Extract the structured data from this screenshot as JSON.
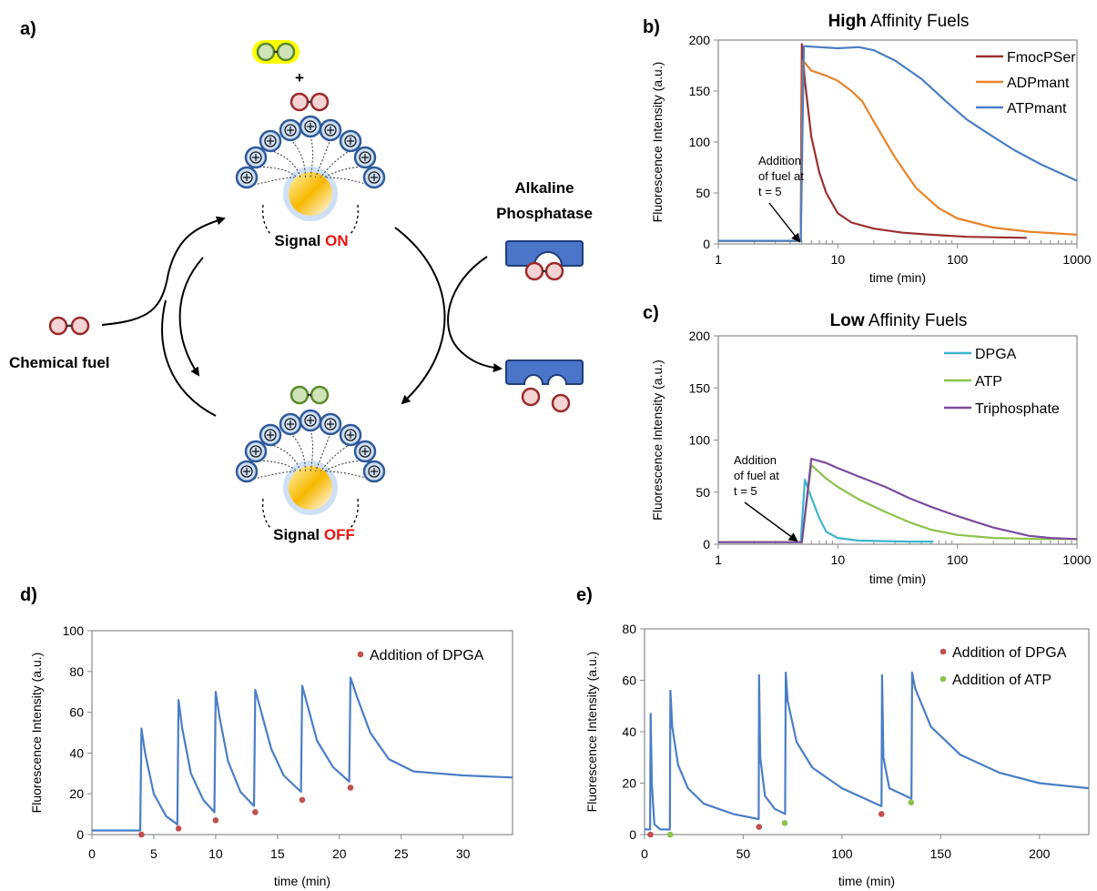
{
  "panels": {
    "a": "a)",
    "b": "b)",
    "c": "c)",
    "d": "d)",
    "e": "e)"
  },
  "scheme": {
    "signal_on_word": "Signal",
    "signal_on_state": "ON",
    "signal_off_word": "Signal",
    "signal_off_state": "OFF",
    "plus": "+",
    "chemical_fuel": "Chemical fuel",
    "enzyme_line1": "Alkaline",
    "enzyme_line2": "Phosphatase",
    "colors": {
      "on_off_red": "#e8140f",
      "head": "#2f5a9a",
      "enzyme": "#4a75c9",
      "fuel_red": "#9b2a2a",
      "fuel_green": "#5a8a2a",
      "highlight": "#ffff00"
    }
  },
  "chart_data": [
    {
      "id": "b",
      "type": "line",
      "title_bold": "High",
      "title_rest": "Affinity Fuels",
      "xlabel": "time (min)",
      "ylabel": "Fluorescence Intensity (a.u.)",
      "xscale": "log",
      "xlim": [
        1,
        1000
      ],
      "ylim": [
        0,
        200
      ],
      "xticks": [
        1,
        10,
        100,
        1000
      ],
      "yticks": [
        0,
        50,
        100,
        150,
        200
      ],
      "legend": "top-right",
      "annotation": [
        "Addition",
        "of fuel at",
        "t = 5"
      ],
      "series": [
        {
          "name": "FmocPSer",
          "color": "#9b2f2f",
          "x": [
            1,
            4.9,
            5,
            5.3,
            6,
            7,
            8,
            10,
            13,
            20,
            35,
            60,
            120,
            200,
            380
          ],
          "y": [
            3,
            3,
            196,
            160,
            105,
            70,
            50,
            30,
            21,
            15,
            11,
            9,
            7,
            6.5,
            6
          ]
        },
        {
          "name": "ADPmant",
          "color": "#e8832a",
          "x": [
            1,
            4.9,
            5.1,
            6,
            8,
            10,
            13,
            16,
            20,
            30,
            45,
            70,
            100,
            200,
            400,
            1000
          ],
          "y": [
            3,
            3,
            180,
            170,
            165,
            160,
            150,
            140,
            120,
            85,
            55,
            35,
            25,
            16,
            12,
            9
          ]
        },
        {
          "name": "ATPmant",
          "color": "#4a7ec5",
          "x": [
            1,
            4.9,
            5.2,
            7,
            10,
            15,
            20,
            30,
            50,
            80,
            120,
            200,
            300,
            500,
            1000
          ],
          "y": [
            3,
            3,
            194,
            193,
            192,
            193,
            190,
            180,
            162,
            140,
            122,
            105,
            92,
            78,
            62
          ]
        }
      ]
    },
    {
      "id": "c",
      "type": "line",
      "title_bold": "Low",
      "title_rest": "Affinity Fuels",
      "xlabel": "time (min)",
      "ylabel": "Fluorescence Intensity (a.u.)",
      "xscale": "log",
      "xlim": [
        1,
        1000
      ],
      "ylim": [
        0,
        200
      ],
      "xticks": [
        1,
        10,
        100,
        1000
      ],
      "yticks": [
        0,
        50,
        100,
        150,
        200
      ],
      "legend": "top-right",
      "annotation": [
        "Addition",
        "of fuel at",
        "t = 5"
      ],
      "series": [
        {
          "name": "DPGA",
          "color": "#3fb3cc",
          "x": [
            1,
            4.9,
            5.3,
            6,
            7,
            8,
            10,
            15,
            25,
            40,
            63
          ],
          "y": [
            2,
            2,
            62,
            45,
            25,
            12,
            6,
            3.5,
            3,
            2.5,
            2.5
          ]
        },
        {
          "name": "ATP",
          "color": "#8dc24b",
          "x": [
            1,
            5,
            6,
            8,
            10,
            15,
            25,
            40,
            60,
            100,
            200,
            500,
            1000
          ],
          "y": [
            2,
            2,
            76,
            63,
            55,
            43,
            31,
            21,
            14,
            9,
            6,
            5,
            5
          ]
        },
        {
          "name": "Triphosphate",
          "color": "#7a4b9e",
          "x": [
            1,
            5,
            6,
            8,
            10,
            15,
            25,
            40,
            60,
            100,
            200,
            400,
            600,
            1000
          ],
          "y": [
            2,
            2,
            82,
            78,
            73,
            65,
            55,
            44,
            36,
            27,
            16,
            8,
            6,
            5
          ]
        }
      ]
    },
    {
      "id": "d",
      "type": "line",
      "xlabel": "time (min)",
      "ylabel": "Fluorescence Intensity (a.u.)",
      "xlim": [
        0,
        34
      ],
      "ylim": [
        0,
        100
      ],
      "xticks": [
        0,
        5,
        10,
        15,
        20,
        25,
        30
      ],
      "yticks": [
        0,
        20,
        40,
        60,
        80,
        100
      ],
      "legend": "top-right",
      "series": [
        {
          "name": "",
          "color": "#4a7ec5",
          "x": [
            0,
            3.9,
            4.0,
            4.3,
            5,
            6,
            6.9,
            7.0,
            7.3,
            8,
            9,
            9.9,
            10.0,
            10.3,
            11,
            12,
            13.1,
            13.2,
            13.6,
            14.5,
            15.5,
            16.9,
            17.0,
            17.4,
            18.2,
            19.5,
            20.8,
            20.9,
            21.4,
            22.5,
            24,
            26,
            30,
            34
          ],
          "y": [
            2,
            2,
            52,
            40,
            20,
            9,
            5,
            66,
            52,
            30,
            17,
            11,
            70,
            58,
            36,
            21,
            14,
            71,
            62,
            42,
            29,
            21,
            73,
            64,
            46,
            33,
            26,
            77,
            68,
            50,
            37,
            31,
            29,
            28
          ]
        }
      ],
      "markers": [
        {
          "name": "Addition of DPGA",
          "color": "#c0504d",
          "x": [
            4.0,
            7.0,
            10.0,
            13.2,
            17.0,
            20.9
          ],
          "y": [
            0,
            3,
            7,
            11,
            17,
            23
          ]
        }
      ]
    },
    {
      "id": "e",
      "type": "line",
      "xlabel": "time (min)",
      "ylabel": "Fluorescence  Intensity (a.u.)",
      "xlim": [
        0,
        225
      ],
      "ylim": [
        0,
        80
      ],
      "xticks": [
        0,
        50,
        100,
        150,
        200
      ],
      "yticks": [
        0,
        20,
        40,
        60,
        80
      ],
      "legend": "top-right",
      "series": [
        {
          "name": "",
          "color": "#4a7ec5",
          "x": [
            0,
            2.8,
            3.1,
            3.7,
            5,
            8,
            12.8,
            13.1,
            14,
            17,
            22,
            30,
            45,
            57.8,
            58.0,
            58.6,
            61,
            66,
            71.2,
            71.5,
            72.5,
            77,
            85,
            100,
            120,
            120.3,
            121,
            124,
            135.2,
            135.5,
            137,
            145,
            160,
            180,
            200,
            225
          ],
          "y": [
            2,
            2,
            47,
            20,
            4,
            2,
            2,
            56,
            42,
            27,
            18,
            12,
            8,
            6,
            62,
            30,
            15,
            10,
            8,
            63,
            52,
            36,
            26,
            18,
            11,
            62,
            30,
            18,
            14,
            63,
            57,
            42,
            31,
            24,
            20,
            18
          ]
        }
      ],
      "markers": [
        {
          "name": "Addition of DPGA",
          "color": "#c0504d",
          "x": [
            3,
            58,
            120
          ],
          "y": [
            0,
            3,
            8
          ]
        },
        {
          "name": "Addition of ATP",
          "color": "#8dc24b",
          "x": [
            13,
            71,
            135
          ],
          "y": [
            0,
            4.5,
            12.5
          ]
        }
      ]
    }
  ]
}
